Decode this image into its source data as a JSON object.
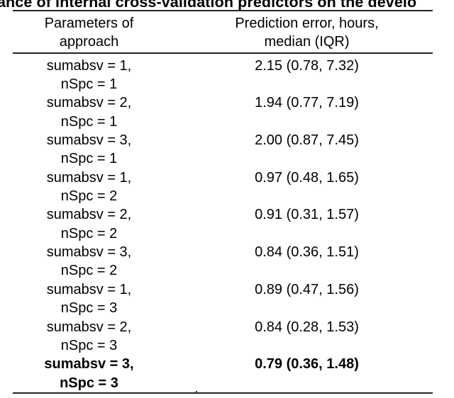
{
  "page": {
    "background": "#ffffff",
    "text_color": "#000000",
    "rule_color": "#222222"
  },
  "title": {
    "visible_text": "ance of internal cross-validation predictors on the develo",
    "note_style": "bold, clipped at top, left and right edges of the image"
  },
  "table": {
    "columns": [
      {
        "header_line1": "Parameters of",
        "header_line2": "approach"
      },
      {
        "header_line1": "Prediction error, hours,",
        "header_line2": "median (IQR)"
      }
    ],
    "rows": [
      {
        "param_line1": "sumabsv = 1,",
        "param_line2": "nSpc = 1",
        "value": "2.15 (0.78, 7.32)",
        "bold": false
      },
      {
        "param_line1": "sumabsv = 2,",
        "param_line2": "nSpc = 1",
        "value": "1.94 (0.77, 7.19)",
        "bold": false
      },
      {
        "param_line1": "sumabsv = 3,",
        "param_line2": "nSpc = 1",
        "value": "2.00 (0.87, 7.45)",
        "bold": false
      },
      {
        "param_line1": "sumabsv = 1,",
        "param_line2": "nSpc = 2",
        "value": "0.97 (0.48, 1.65)",
        "bold": false
      },
      {
        "param_line1": "sumabsv = 2,",
        "param_line2": "nSpc = 2",
        "value": "0.91 (0.31, 1.57)",
        "bold": false
      },
      {
        "param_line1": "sumabsv = 3,",
        "param_line2": "nSpc = 2",
        "value": "0.84 (0.36, 1.51)",
        "bold": false
      },
      {
        "param_line1": "sumabsv = 1,",
        "param_line2": "nSpc = 3",
        "value": "0.89 (0.47, 1.56)",
        "bold": false
      },
      {
        "param_line1": "sumabsv = 2,",
        "param_line2": "nSpc = 3",
        "value": "0.84 (0.28, 1.53)",
        "bold": false
      },
      {
        "param_line1": "sumabsv = 3,",
        "param_line2": "nSpc = 3",
        "value": "0.79 (0.36, 1.48)",
        "bold": true
      }
    ]
  }
}
